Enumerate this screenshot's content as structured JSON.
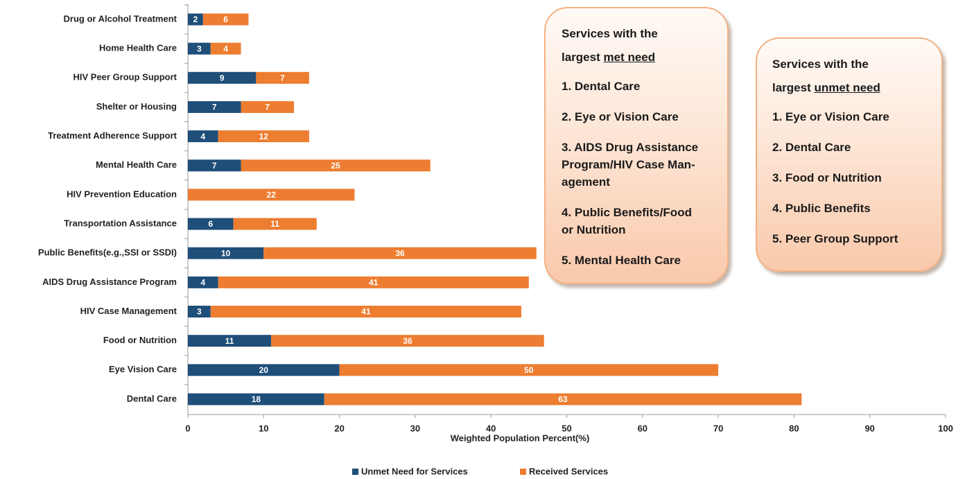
{
  "chart_data": {
    "type": "stacked_barh",
    "categories": [
      "Drug or Alcohol Treatment",
      "Home Health Care",
      "HIV Peer Group Support",
      "Shelter or Housing",
      "Treatment Adherence Support",
      "Mental Health Care",
      "HIV Prevention Education",
      "Transportation Assistance",
      "Public Benefits(e.g.,SSI or SSDI)",
      "AIDS Drug Assistance Program",
      "HIV Case Management",
      "Food or Nutrition",
      "Eye Vision Care",
      "Dental Care"
    ],
    "series": [
      {
        "name": "Unmet Need for Services",
        "color": "#1f4e79",
        "values": [
          2,
          3,
          9,
          7,
          4,
          7,
          null,
          6,
          10,
          4,
          3,
          11,
          20,
          18
        ]
      },
      {
        "name": "Received Services",
        "color": "#ed7d31",
        "values": [
          6,
          4,
          7,
          7,
          12,
          25,
          22,
          11,
          36,
          41,
          41,
          36,
          50,
          63
        ]
      }
    ],
    "xlim": [
      0,
      100
    ],
    "xticks": [
      0,
      10,
      20,
      30,
      40,
      50,
      60,
      70,
      80,
      90,
      100
    ],
    "xlabel": "Weighted Population Percent(%)",
    "legend": "bottom",
    "annotations": [
      {
        "title": [
          "Services with the",
          "largest "
        ],
        "title_emphasis": "met need",
        "items": [
          [
            "1. Dental Care"
          ],
          [
            "2. Eye or Vision Care"
          ],
          [
            "3. AIDS Drug Assistance",
            "Program/HIV Case Man-",
            "agement"
          ],
          [
            "4. Public Benefits/Food",
            "or Nutrition"
          ],
          [
            "5. Mental Health Care"
          ]
        ]
      },
      {
        "title": [
          "Services with the",
          "largest "
        ],
        "title_emphasis": "unmet need",
        "items": [
          [
            "1. Eye or Vision Care"
          ],
          [
            "2. Dental Care"
          ],
          [
            "3. Food or Nutrition"
          ],
          [
            "4. Public Benefits"
          ],
          [
            "5. Peer Group Support"
          ]
        ]
      }
    ]
  }
}
